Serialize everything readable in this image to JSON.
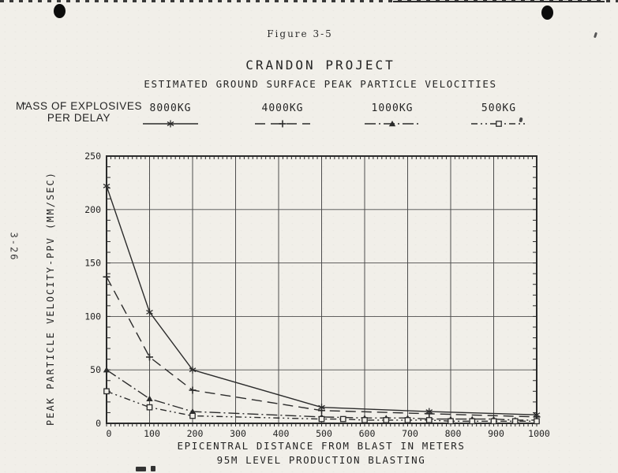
{
  "page": {
    "figure_label": "Figure 3-5",
    "page_number": "3-26",
    "title": "CRANDON PROJECT",
    "subtitle": "ESTIMATED GROUND SURFACE PEAK PARTICLE VELOCITIES",
    "legend_heading_line1": "MASS OF EXPLOSIVES",
    "legend_heading_line2": "PER DELAY"
  },
  "chart_data": {
    "type": "line",
    "title": "CRANDON PROJECT",
    "subtitle": "ESTIMATED GROUND SURFACE PEAK PARTICLE VELOCITIES",
    "xlabel": "EPICENTRAL DISTANCE FROM BLAST IN METERS",
    "xlabel_line2": "95M LEVEL PRODUCTION BLASTING",
    "ylabel": "PEAK PARTICLE VELOCITY-PPV (MM/SEC)",
    "xlim": [
      0,
      1000
    ],
    "ylim": [
      0,
      250
    ],
    "x_tick_step": 100,
    "y_tick_step": 50,
    "x_minor_tick_step": 10,
    "y_minor_tick_step": 10,
    "grid": true,
    "legend_position": "top",
    "legend_title": "MASS OF EXPLOSIVES PER DELAY",
    "series": [
      {
        "name": "8000KG",
        "line_style": "solid",
        "marker": "asterisk",
        "points": [
          [
            0,
            222
          ],
          [
            100,
            104
          ],
          [
            200,
            50
          ],
          [
            500,
            15
          ],
          [
            750,
            11
          ],
          [
            1000,
            8
          ]
        ]
      },
      {
        "name": "4000KG",
        "line_style": "long-dash",
        "marker": "plus",
        "points": [
          [
            0,
            137
          ],
          [
            100,
            62
          ],
          [
            200,
            31
          ],
          [
            500,
            12
          ],
          [
            750,
            9
          ],
          [
            1000,
            6
          ]
        ]
      },
      {
        "name": "1000KG",
        "line_style": "dash-dot",
        "marker": "triangle-filled",
        "points": [
          [
            0,
            50
          ],
          [
            100,
            23
          ],
          [
            200,
            11
          ],
          [
            500,
            6
          ],
          [
            600,
            5
          ],
          [
            650,
            5
          ],
          [
            700,
            5
          ],
          [
            750,
            4
          ],
          [
            800,
            4
          ],
          [
            850,
            4
          ],
          [
            900,
            4
          ],
          [
            950,
            3
          ],
          [
            1000,
            3
          ]
        ]
      },
      {
        "name": "500KG",
        "line_style": "dash-dot-dot",
        "marker": "square-open",
        "points": [
          [
            0,
            30
          ],
          [
            100,
            15
          ],
          [
            200,
            7
          ],
          [
            500,
            4
          ],
          [
            550,
            4
          ],
          [
            600,
            3
          ],
          [
            650,
            3
          ],
          [
            700,
            3
          ],
          [
            750,
            3
          ],
          [
            800,
            2
          ],
          [
            850,
            2
          ],
          [
            900,
            2
          ],
          [
            950,
            2
          ],
          [
            1000,
            2
          ]
        ]
      }
    ]
  }
}
